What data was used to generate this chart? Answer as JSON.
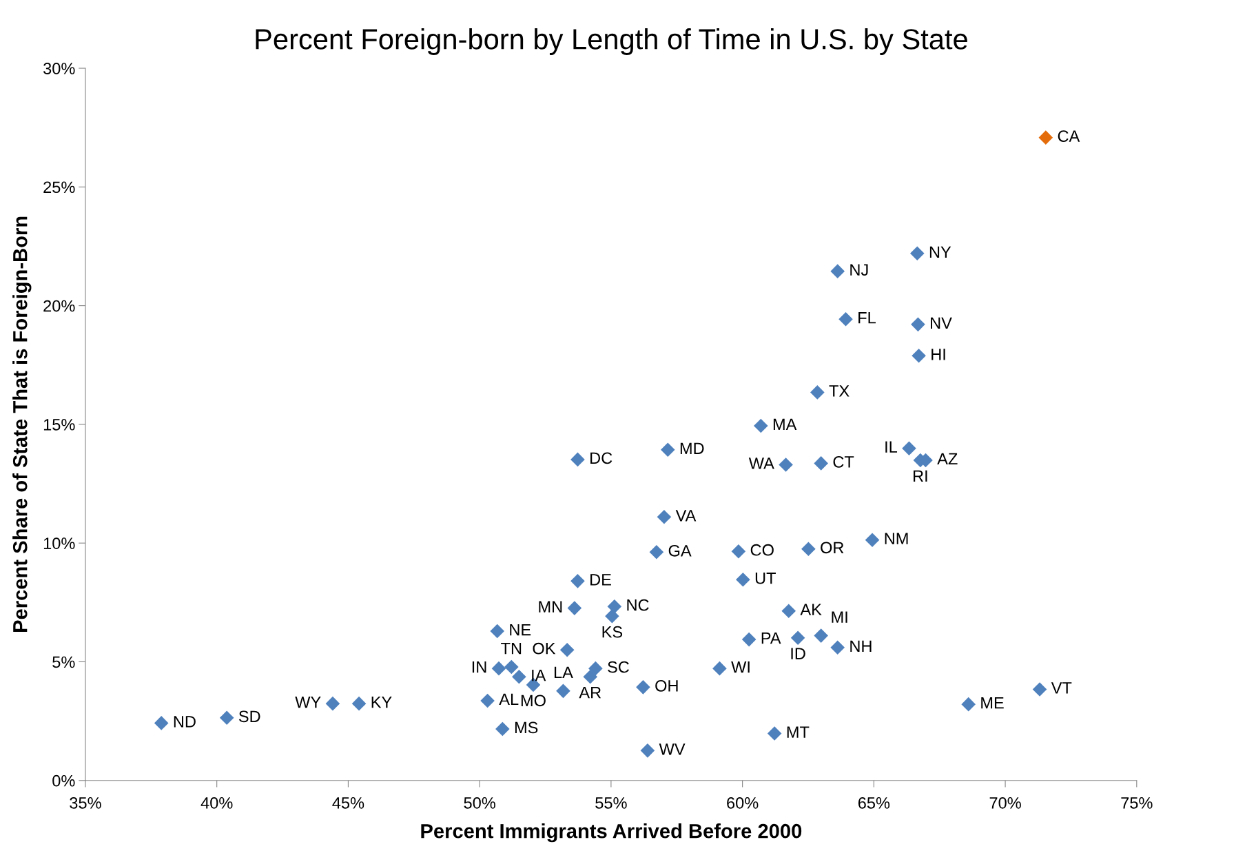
{
  "chart_data": {
    "type": "scatter",
    "title": "Percent Foreign-born by Length of Time in U.S. by State",
    "xlabel": "Percent Immigrants Arrived Before 2000",
    "ylabel": "Percent Share of State That is Foreign-Born",
    "marker": "diamond",
    "grid": false,
    "legend": false,
    "xlim": [
      35,
      75
    ],
    "xticks": [
      {
        "value": 35,
        "label": "35%"
      },
      {
        "value": 40,
        "label": "40%"
      },
      {
        "value": 45,
        "label": "45%"
      },
      {
        "value": 50,
        "label": "50%"
      },
      {
        "value": 55,
        "label": "55%"
      },
      {
        "value": 60,
        "label": "60%"
      },
      {
        "value": 65,
        "label": "65%"
      },
      {
        "value": 70,
        "label": "70%"
      },
      {
        "value": 75,
        "label": "75%"
      }
    ],
    "ylim": [
      0,
      30
    ],
    "yticks": [
      {
        "value": 0,
        "label": "0%"
      },
      {
        "value": 5,
        "label": "5%"
      },
      {
        "value": 10,
        "label": "10%"
      },
      {
        "value": 15,
        "label": "15%"
      },
      {
        "value": 20,
        "label": "20%"
      },
      {
        "value": 25,
        "label": "25%"
      },
      {
        "value": 30,
        "label": "30%"
      }
    ],
    "series": [
      {
        "color": "#4f81bd",
        "x": [
          66.65,
          63.62,
          63.93,
          66.68,
          66.71,
          62.85,
          60.7,
          66.34,
          66.77,
          66.97,
          57.16,
          53.73,
          61.65,
          62.99,
          57.02,
          64.94,
          59.85,
          62.51,
          56.73,
          53.73,
          60.02,
          53.61,
          55.13,
          55.04,
          61.76,
          50.67,
          60.25,
          62.11,
          62.99,
          63.62,
          53.33,
          50.73,
          51.21,
          54.41,
          59.13,
          51.5,
          54.21,
          52.04,
          56.22,
          53.18,
          71.31,
          50.3,
          44.41,
          45.41,
          68.6,
          40.38,
          37.89,
          50.87,
          61.22,
          56.39
        ],
        "values": [
          22.2,
          21.45,
          19.43,
          19.21,
          17.89,
          16.35,
          14.94,
          13.99,
          13.49,
          13.49,
          13.93,
          13.52,
          13.3,
          13.36,
          11.1,
          10.13,
          9.65,
          9.75,
          9.62,
          8.4,
          8.46,
          7.26,
          7.33,
          6.92,
          7.14,
          6.29,
          5.94,
          6.01,
          6.1,
          5.6,
          5.5,
          4.72,
          4.78,
          4.72,
          4.72,
          4.37,
          4.37,
          4.03,
          3.93,
          3.77,
          3.84,
          3.36,
          3.24,
          3.24,
          3.21,
          2.64,
          2.42,
          2.17,
          1.98,
          1.26
        ],
        "value_labels": [
          "NY",
          "NJ",
          "FL",
          "NV",
          "HI",
          "TX",
          "MA",
          "IL",
          "RI",
          "AZ",
          "MD",
          "DC",
          "WA",
          "CT",
          "VA",
          "NM",
          "CO",
          "OR",
          "GA",
          "DE",
          "UT",
          "MN",
          "NC",
          "KS",
          "AK",
          "NE",
          "PA",
          "ID",
          "MI",
          "NH",
          "OK",
          "IN",
          "TN",
          "SC",
          "WI",
          "IA",
          "AR",
          "MO",
          "OH",
          "LA",
          "VT",
          "AL",
          "WY",
          "KY",
          "ME",
          "SD",
          "ND",
          "MS",
          "MT",
          "WV"
        ]
      },
      {
        "color": "#e46c0a",
        "x": [
          71.54
        ],
        "values": [
          27.08
        ],
        "value_labels": [
          "CA"
        ]
      }
    ]
  }
}
